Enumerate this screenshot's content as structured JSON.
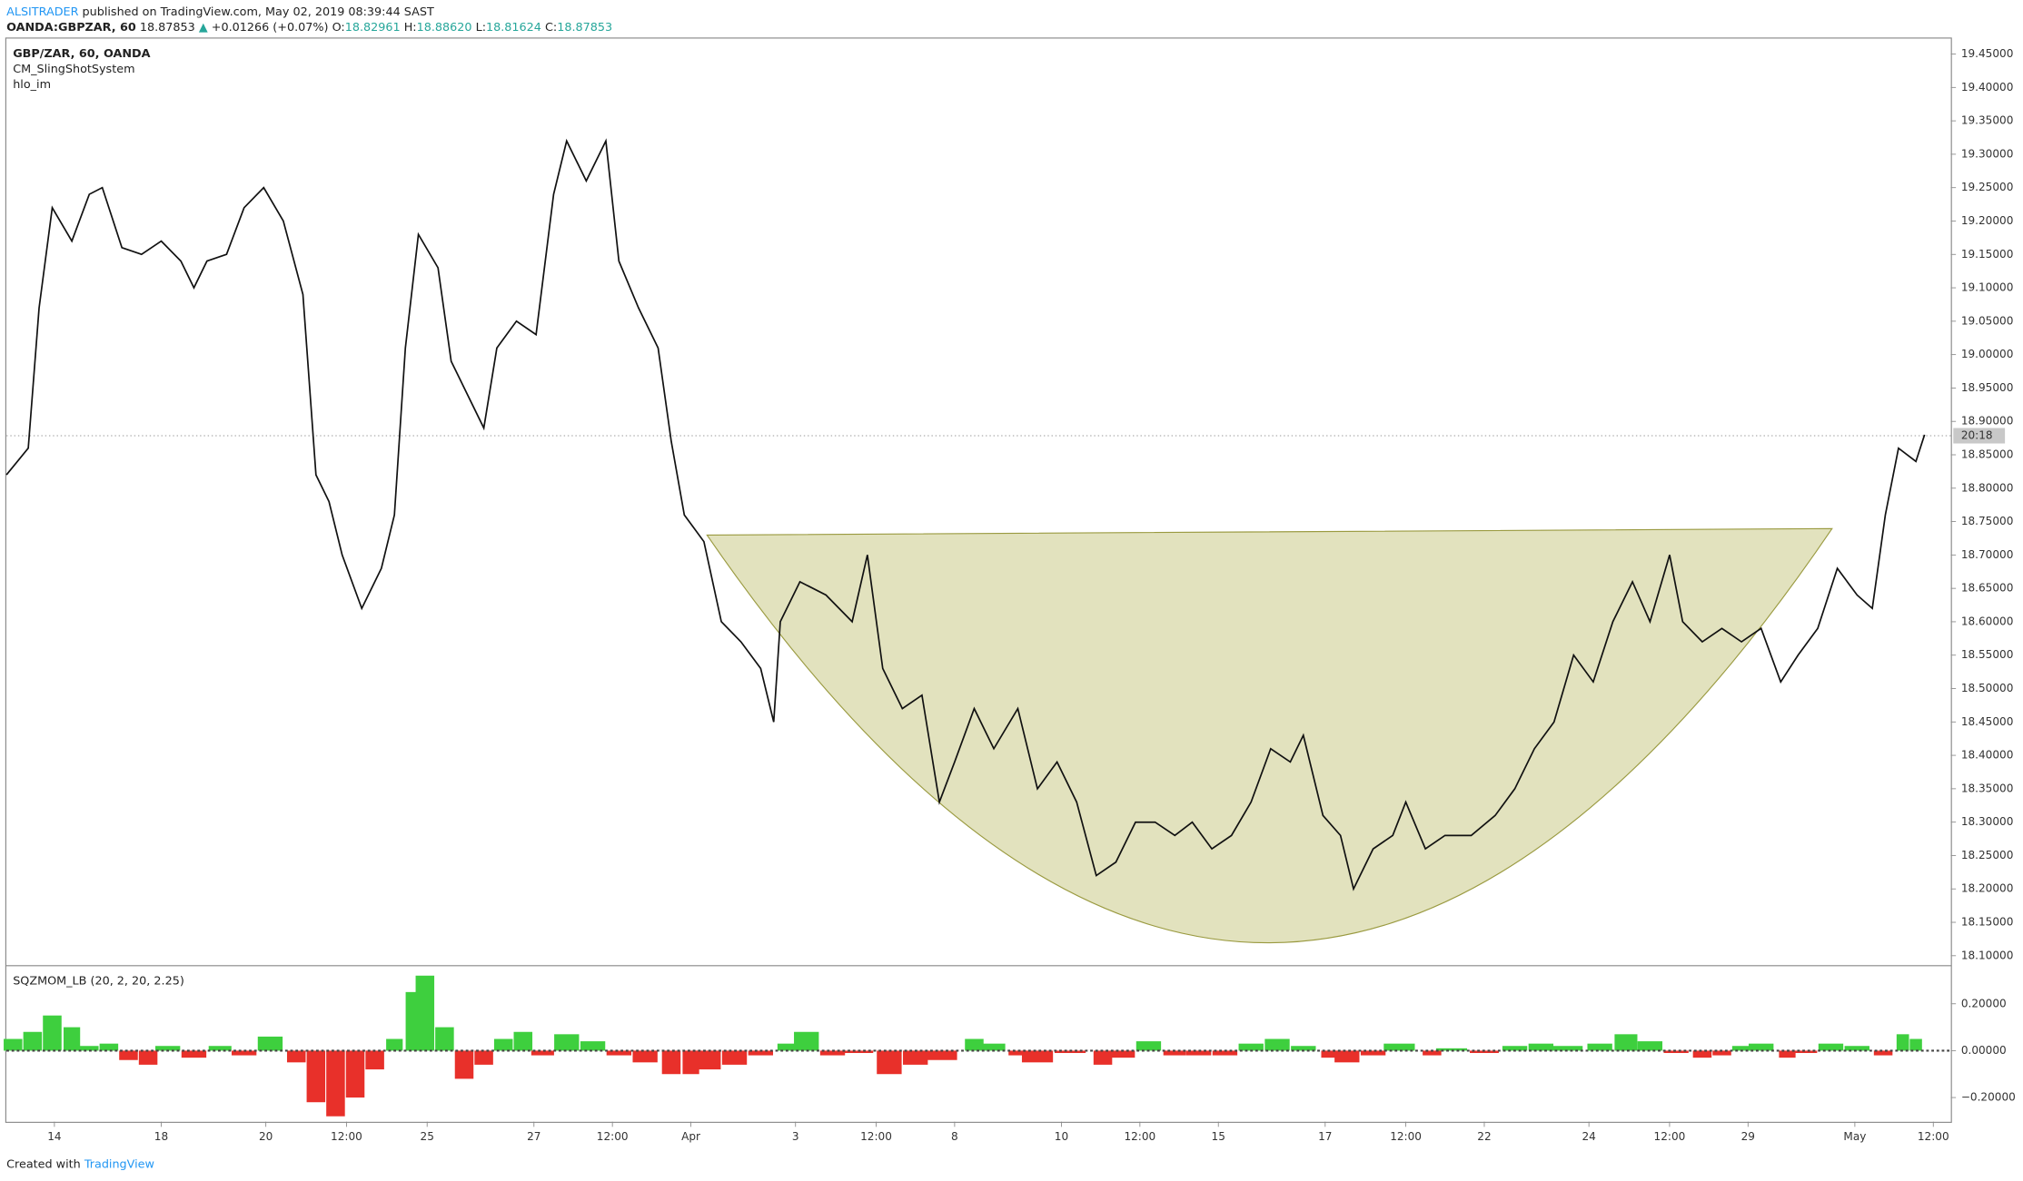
{
  "header": {
    "author": "ALSITRADER",
    "published": "published on TradingView.com, May 02, 2019 08:39:44 SAST",
    "symbol": "OANDA:GBPZAR, 60",
    "last": "18.87853",
    "change_arrow": "▲",
    "change": "+0.01266 (+0.07%)",
    "o_label": "O:",
    "o": "18.82961",
    "h_label": "H:",
    "h": "18.88620",
    "l_label": "L:",
    "l": "18.81624",
    "c_label": "C:",
    "c": "18.87853"
  },
  "legend": {
    "main": "GBP/ZAR, 60, OANDA",
    "study1": "CM_SlingShotSystem",
    "study2": "hlo_im"
  },
  "chart_data": [
    {
      "type": "line",
      "name": "GBP/ZAR",
      "color": "#111111",
      "x": [
        0,
        10,
        15,
        21,
        30,
        38,
        44,
        53,
        62,
        71,
        80,
        86,
        92,
        101,
        109,
        118,
        127,
        136,
        142,
        148,
        154,
        163,
        172,
        178,
        183,
        189,
        198,
        204,
        210,
        219,
        225,
        234,
        243,
        251,
        257,
        266,
        275,
        281,
        290,
        299,
        305,
        311,
        320,
        328,
        337,
        346,
        352,
        355,
        364,
        376,
        388,
        395,
        402,
        411,
        420,
        428,
        435,
        444,
        453,
        464,
        473,
        482,
        491,
        500,
        509,
        518,
        527,
        536,
        544,
        553,
        562,
        571,
        580,
        589,
        595,
        604,
        612,
        618,
        627,
        636,
        642,
        651,
        660,
        672,
        683,
        692,
        701,
        710,
        719,
        728,
        737,
        746,
        754,
        763,
        769,
        778,
        787,
        796,
        805,
        814,
        822,
        831,
        840,
        849,
        856,
        862,
        868,
        876,
        880
      ],
      "values": [
        18.82,
        18.86,
        19.07,
        19.22,
        19.17,
        19.24,
        19.25,
        19.16,
        19.15,
        19.17,
        19.14,
        19.1,
        19.14,
        19.15,
        19.22,
        19.25,
        19.2,
        19.09,
        18.82,
        18.78,
        18.7,
        18.62,
        18.68,
        18.76,
        19.01,
        19.18,
        19.13,
        18.99,
        18.95,
        18.89,
        19.01,
        19.05,
        19.03,
        19.24,
        19.32,
        19.26,
        19.32,
        19.14,
        19.07,
        19.01,
        18.87,
        18.76,
        18.72,
        18.6,
        18.57,
        18.53,
        18.45,
        18.6,
        18.66,
        18.64,
        18.6,
        18.7,
        18.53,
        18.47,
        18.49,
        18.33,
        18.39,
        18.47,
        18.41,
        18.47,
        18.35,
        18.39,
        18.33,
        18.22,
        18.24,
        18.3,
        18.3,
        18.28,
        18.3,
        18.26,
        18.28,
        18.33,
        18.41,
        18.39,
        18.43,
        18.31,
        18.28,
        18.2,
        18.26,
        18.28,
        18.33,
        18.26,
        18.28,
        18.28,
        18.31,
        18.35,
        18.41,
        18.45,
        18.55,
        18.51,
        18.6,
        18.66,
        18.6,
        18.7,
        18.6,
        18.57,
        18.59,
        18.57,
        18.59,
        18.51,
        18.55,
        18.59,
        18.68,
        18.64,
        18.62,
        18.76,
        18.86,
        18.84,
        18.88
      ],
      "last_price": 18.87853,
      "countdown": "20:18",
      "xlim": [
        0,
        892
      ],
      "xticks": [
        {
          "value": 22,
          "label": "14"
        },
        {
          "value": 71,
          "label": "18"
        },
        {
          "value": 119,
          "label": "20"
        },
        {
          "value": 156,
          "label": "12:00"
        },
        {
          "value": 193,
          "label": "25"
        },
        {
          "value": 242,
          "label": "27"
        },
        {
          "value": 278,
          "label": "12:00"
        },
        {
          "value": 314,
          "label": "Apr"
        },
        {
          "value": 362,
          "label": "3"
        },
        {
          "value": 399,
          "label": "12:00"
        },
        {
          "value": 435,
          "label": "8"
        },
        {
          "value": 484,
          "label": "10"
        },
        {
          "value": 520,
          "label": "12:00"
        },
        {
          "value": 556,
          "label": "15"
        },
        {
          "value": 605,
          "label": "17"
        },
        {
          "value": 642,
          "label": "12:00"
        },
        {
          "value": 678,
          "label": "22"
        },
        {
          "value": 726,
          "label": "24"
        },
        {
          "value": 763,
          "label": "12:00"
        },
        {
          "value": 799,
          "label": "29"
        },
        {
          "value": 848,
          "label": "May"
        },
        {
          "value": 884,
          "label": "12:00"
        }
      ],
      "ylim": [
        18.087,
        19.473
      ],
      "yticks": [
        {
          "value": 18.1,
          "label": "18.10000"
        },
        {
          "value": 18.15,
          "label": "18.15000"
        },
        {
          "value": 18.2,
          "label": "18.20000"
        },
        {
          "value": 18.25,
          "label": "18.25000"
        },
        {
          "value": 18.3,
          "label": "18.30000"
        },
        {
          "value": 18.35,
          "label": "18.35000"
        },
        {
          "value": 18.4,
          "label": "18.40000"
        },
        {
          "value": 18.45,
          "label": "18.45000"
        },
        {
          "value": 18.5,
          "label": "18.50000"
        },
        {
          "value": 18.55,
          "label": "18.55000"
        },
        {
          "value": 18.6,
          "label": "18.60000"
        },
        {
          "value": 18.65,
          "label": "18.65000"
        },
        {
          "value": 18.7,
          "label": "18.70000"
        },
        {
          "value": 18.75,
          "label": "18.75000"
        },
        {
          "value": 18.8,
          "label": "18.80000"
        },
        {
          "value": 18.85,
          "label": "18.85000"
        },
        {
          "value": 18.9,
          "label": "18.90000"
        },
        {
          "value": 18.95,
          "label": "18.95000"
        },
        {
          "value": 19.0,
          "label": "19.00000"
        },
        {
          "value": 19.05,
          "label": "19.05000"
        },
        {
          "value": 19.1,
          "label": "19.10000"
        },
        {
          "value": 19.15,
          "label": "19.15000"
        },
        {
          "value": 19.2,
          "label": "19.20000"
        },
        {
          "value": 19.25,
          "label": "19.25000"
        },
        {
          "value": 19.3,
          "label": "19.30000"
        },
        {
          "value": 19.35,
          "label": "19.35000"
        },
        {
          "value": 19.4,
          "label": "19.40000"
        },
        {
          "value": 19.45,
          "label": "19.45000"
        }
      ]
    },
    {
      "type": "bar",
      "title": "SQZMOM_LB (20, 2, 20, 2.25)",
      "positive_color": "#3ecf3e",
      "negative_color": "#e8302a",
      "x": [
        3,
        12,
        21,
        30,
        38,
        47,
        56,
        65,
        74,
        86,
        98,
        109,
        121,
        133,
        142,
        151,
        160,
        169,
        178,
        186,
        192,
        201,
        210,
        219,
        228,
        237,
        246,
        257,
        269,
        281,
        293,
        305,
        314,
        322,
        334,
        346,
        358,
        367,
        379,
        391,
        405,
        417,
        429,
        444,
        453,
        464,
        473,
        488,
        503,
        512,
        524,
        536,
        547,
        559,
        571,
        583,
        595,
        607,
        615,
        627,
        639,
        654,
        663,
        678,
        692,
        704,
        716,
        731,
        743,
        754,
        766,
        778,
        787,
        796,
        805,
        817,
        825,
        837,
        849,
        861,
        870,
        876
      ],
      "values": [
        0.05,
        0.08,
        0.15,
        0.1,
        0.02,
        0.03,
        -0.04,
        -0.06,
        0.02,
        -0.03,
        0.02,
        -0.02,
        0.06,
        -0.05,
        -0.22,
        -0.28,
        -0.2,
        -0.08,
        0.05,
        0.25,
        0.32,
        0.1,
        -0.12,
        -0.06,
        0.05,
        0.08,
        -0.02,
        0.07,
        0.04,
        -0.02,
        -0.05,
        -0.1,
        -0.1,
        -0.08,
        -0.06,
        -0.02,
        0.03,
        0.08,
        -0.02,
        -0.01,
        -0.1,
        -0.06,
        -0.04,
        0.05,
        0.03,
        -0.02,
        -0.05,
        -0.01,
        -0.06,
        -0.03,
        0.04,
        -0.02,
        -0.02,
        -0.02,
        0.03,
        0.05,
        0.02,
        -0.03,
        -0.05,
        -0.02,
        0.03,
        -0.02,
        0.01,
        -0.01,
        0.02,
        0.03,
        0.02,
        0.03,
        0.07,
        0.04,
        -0.01,
        -0.03,
        -0.02,
        0.02,
        0.03,
        -0.03,
        -0.01,
        0.03,
        0.02,
        -0.02,
        0.07,
        0.05
      ],
      "xlim": [
        0,
        892
      ],
      "ylim": [
        -0.303,
        0.357
      ],
      "yticks": [
        {
          "value": -0.2,
          "label": "−0.20000"
        },
        {
          "value": 0,
          "label": "0.00000"
        },
        {
          "value": 0.2,
          "label": "0.20000"
        }
      ]
    }
  ],
  "footer": {
    "created": "Created with",
    "brand": "TradingView"
  }
}
